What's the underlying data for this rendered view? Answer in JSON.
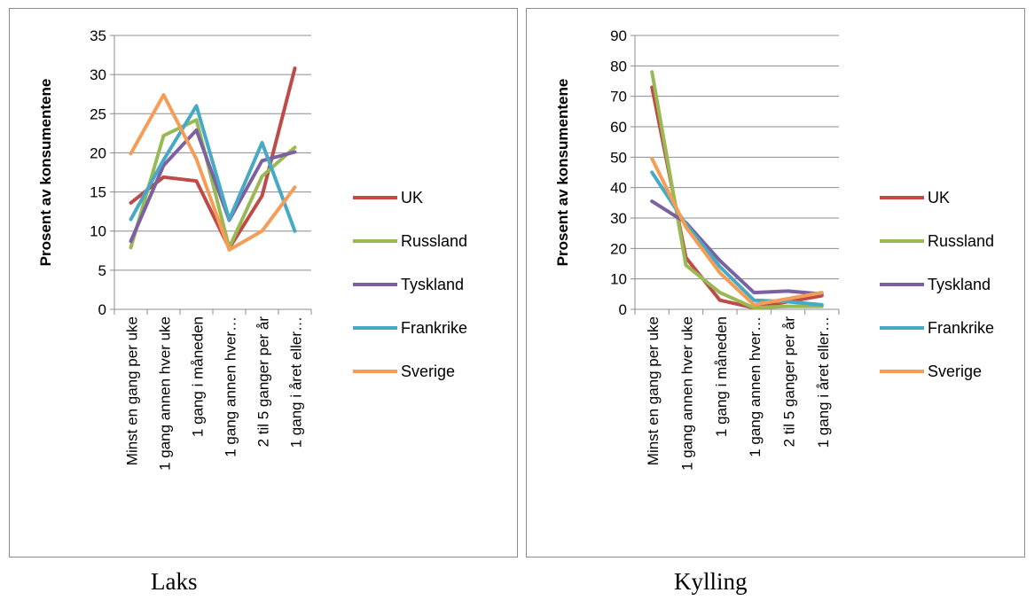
{
  "chart_data": [
    {
      "type": "line",
      "ylabel": "Prosent av konsumentene",
      "ylim": [
        0,
        35
      ],
      "yticks": [
        0,
        5,
        10,
        15,
        20,
        25,
        30,
        35
      ],
      "categories": [
        "Minst en gang per uke",
        "1 gang annen hver uke",
        "1 gang i måneden",
        "1 gang annen hver…",
        "2 til 5 ganger per år",
        "1 gang i året eller…"
      ],
      "grid": true,
      "legend": "right",
      "series": [
        {
          "name": "UK",
          "color": "#be4b48",
          "values": [
            13.6,
            16.9,
            16.4,
            7.8,
            14.5,
            30.8
          ]
        },
        {
          "name": "Russland",
          "color": "#98b954",
          "values": [
            7.9,
            22.2,
            24.2,
            7.9,
            17.0,
            20.7
          ]
        },
        {
          "name": "Tyskland",
          "color": "#7d60a0",
          "values": [
            8.7,
            18.4,
            22.9,
            11.4,
            19.0,
            20.1
          ]
        },
        {
          "name": "Frankrike",
          "color": "#46aac5",
          "values": [
            11.5,
            19.1,
            26.0,
            11.5,
            21.3,
            10.0
          ]
        },
        {
          "name": "Sverige",
          "color": "#f59d56",
          "values": [
            19.9,
            27.4,
            19.2,
            7.6,
            10.0,
            15.6
          ]
        }
      ]
    },
    {
      "type": "line",
      "ylabel": "Prosent av konsumentene",
      "ylim": [
        0,
        90
      ],
      "yticks": [
        0,
        10,
        20,
        30,
        40,
        50,
        60,
        70,
        80,
        90
      ],
      "categories": [
        "Minst en gang per uke",
        "1 gang annen hver uke",
        "1 gang i måneden",
        "1 gang annen hver…",
        "2 til 5 ganger per år",
        "1 gang i året eller…"
      ],
      "grid": true,
      "legend": "right",
      "series": [
        {
          "name": "UK",
          "color": "#be4b48",
          "values": [
            73,
            17,
            3,
            0.5,
            2.5,
            4.5
          ]
        },
        {
          "name": "Russland",
          "color": "#98b954",
          "values": [
            78,
            14.5,
            5.5,
            0.5,
            1.0,
            1.0
          ]
        },
        {
          "name": "Tyskland",
          "color": "#7d60a0",
          "values": [
            35.5,
            28.5,
            16,
            5.5,
            6.0,
            5.0
          ]
        },
        {
          "name": "Frankrike",
          "color": "#46aac5",
          "values": [
            45,
            28,
            14,
            3.0,
            2.5,
            1.5
          ]
        },
        {
          "name": "Sverige",
          "color": "#f59d56",
          "values": [
            49.5,
            27,
            12,
            1.5,
            3.5,
            5.5
          ]
        }
      ]
    }
  ],
  "captions": [
    "Laks",
    "Kylling"
  ]
}
